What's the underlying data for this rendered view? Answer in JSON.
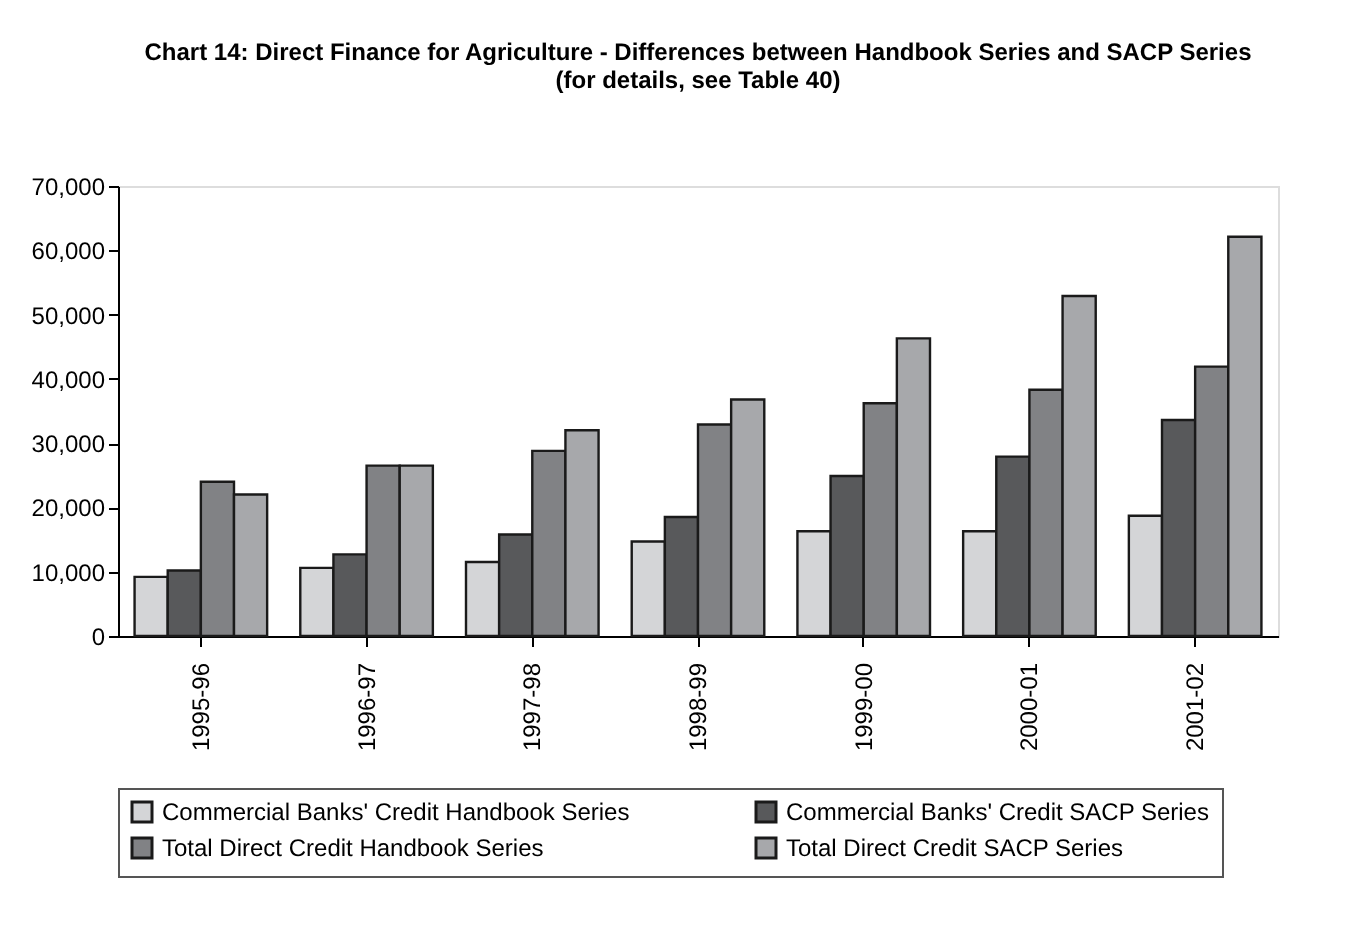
{
  "chart_data": {
    "type": "bar",
    "title": [
      "Chart 14: Direct Finance for Agriculture - Differences between Handbook Series and SACP Series",
      "(for details, see Table 40)"
    ],
    "categories": [
      "1995-96",
      "1996-97",
      "1997-98",
      "1998-99",
      "1999-00",
      "2000-01",
      "2001-02"
    ],
    "series": [
      {
        "name": "Commercial Banks' Credit Handbook Series",
        "color": "#d4d5d7",
        "values": [
          9200,
          10600,
          11500,
          14700,
          16300,
          16300,
          18700
        ]
      },
      {
        "name": "Commercial Banks' Credit SACP Series",
        "color": "#58595b",
        "values": [
          10200,
          12700,
          15800,
          18500,
          24900,
          27900,
          33600
        ]
      },
      {
        "name": "Total Direct Credit Handbook Series",
        "color": "#818285",
        "values": [
          24000,
          26500,
          28800,
          32900,
          36200,
          38300,
          41900
        ]
      },
      {
        "name": "Total Direct Credit SACP Series",
        "color": "#a7a8ab",
        "values": [
          22000,
          26500,
          32000,
          36800,
          46300,
          52900,
          62100
        ]
      }
    ],
    "ylim": [
      0,
      70000
    ],
    "yticks": [
      0,
      {
        "value": 10000,
        "label": "10,000"
      },
      {
        "value": 20000,
        "label": "20,000"
      },
      {
        "value": 30000,
        "label": "30,000"
      },
      {
        "value": 40000,
        "label": "40,000"
      },
      {
        "value": 50000,
        "label": "50,000"
      },
      {
        "value": 60000,
        "label": "60,000"
      },
      {
        "value": 70000,
        "label": "70,000"
      }
    ],
    "grid": false,
    "legend": "bottom"
  }
}
